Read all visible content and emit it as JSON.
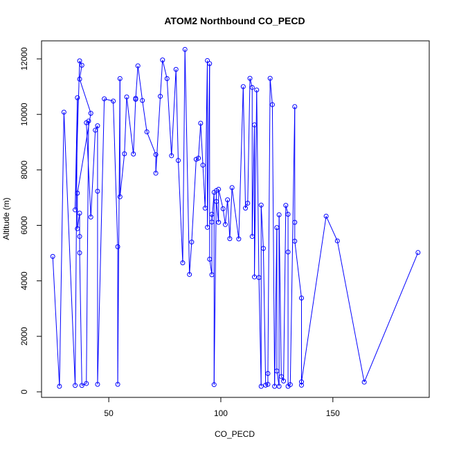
{
  "chart_data": {
    "type": "scatter",
    "title": "ATOM2 Northbound CO_PECD",
    "xlabel": "CO_PECD",
    "ylabel": "Altitude (m)",
    "xlim": [
      20,
      193
    ],
    "ylim": [
      -200,
      12650
    ],
    "xticks": [
      50,
      100,
      150
    ],
    "yticks": [
      0,
      2000,
      4000,
      6000,
      8000,
      10000,
      12000
    ],
    "grid": false,
    "legend": "none",
    "connected": true,
    "color": "#0000ff",
    "series": [
      {
        "points": [
          [
            25,
            4880
          ],
          [
            28,
            200
          ],
          [
            30,
            10080
          ],
          [
            35,
            230
          ],
          [
            36,
            10600
          ],
          [
            35,
            6560
          ],
          [
            37,
            11930
          ],
          [
            38,
            11770
          ],
          [
            37,
            11270
          ],
          [
            42,
            10040
          ],
          [
            36,
            7160
          ],
          [
            36,
            5880
          ],
          [
            37,
            6440
          ],
          [
            37,
            5600
          ],
          [
            37,
            5010
          ],
          [
            38,
            230
          ],
          [
            40,
            300
          ],
          [
            41,
            9760
          ],
          [
            40,
            9700
          ],
          [
            42,
            6300
          ],
          [
            44,
            9430
          ],
          [
            45,
            9590
          ],
          [
            45,
            7230
          ],
          [
            45,
            270
          ],
          [
            48,
            10560
          ],
          [
            52,
            10480
          ],
          [
            54,
            5230
          ],
          [
            54,
            270
          ],
          [
            55,
            11290
          ],
          [
            55,
            7030
          ],
          [
            57,
            8580
          ],
          [
            58,
            10630
          ],
          [
            61,
            8570
          ],
          [
            62,
            10580
          ],
          [
            62,
            10540
          ],
          [
            63,
            11750
          ],
          [
            65,
            10500
          ],
          [
            67,
            9370
          ],
          [
            71,
            8550
          ],
          [
            71,
            7880
          ],
          [
            73,
            10650
          ],
          [
            74,
            11960
          ],
          [
            76,
            11290
          ],
          [
            78,
            8510
          ],
          [
            80,
            11620
          ],
          [
            81,
            8340
          ],
          [
            83,
            4650
          ],
          [
            84,
            12340
          ],
          [
            86,
            4230
          ],
          [
            87,
            5400
          ],
          [
            89,
            8380
          ],
          [
            90,
            8420
          ],
          [
            91,
            9680
          ],
          [
            92,
            8170
          ],
          [
            93,
            6620
          ],
          [
            94,
            11940
          ],
          [
            94,
            5930
          ],
          [
            95,
            11830
          ],
          [
            95,
            4780
          ],
          [
            96,
            4220
          ],
          [
            96,
            6400
          ],
          [
            96,
            6120
          ],
          [
            97,
            7190
          ],
          [
            97,
            260
          ],
          [
            98,
            7250
          ],
          [
            98,
            6860
          ],
          [
            99,
            6110
          ],
          [
            99,
            7300
          ],
          [
            101,
            6600
          ],
          [
            102,
            6030
          ],
          [
            103,
            6920
          ],
          [
            104,
            5520
          ],
          [
            105,
            7360
          ],
          [
            108,
            5510
          ],
          [
            110,
            11000
          ],
          [
            111,
            6620
          ],
          [
            112,
            6800
          ],
          [
            113,
            11300
          ],
          [
            114,
            10970
          ],
          [
            114,
            5600
          ],
          [
            115,
            9620
          ],
          [
            115,
            4140
          ],
          [
            116,
            10880
          ],
          [
            117,
            4120
          ],
          [
            118,
            200
          ],
          [
            118,
            6730
          ],
          [
            119,
            5170
          ],
          [
            120,
            240
          ],
          [
            121,
            270
          ],
          [
            121,
            660
          ],
          [
            122,
            11300
          ],
          [
            123,
            10350
          ],
          [
            124,
            200
          ],
          [
            125,
            5920
          ],
          [
            125,
            750
          ],
          [
            126,
            200
          ],
          [
            126,
            6380
          ],
          [
            127,
            550
          ],
          [
            128,
            390
          ],
          [
            129,
            6720
          ],
          [
            130,
            6400
          ],
          [
            130,
            5040
          ],
          [
            130,
            200
          ],
          [
            131,
            260
          ],
          [
            133,
            10280
          ],
          [
            133,
            6110
          ],
          [
            133,
            5430
          ],
          [
            136,
            3380
          ],
          [
            136,
            240
          ],
          [
            136,
            360
          ],
          [
            147,
            6330
          ],
          [
            152,
            5440
          ],
          [
            164,
            350
          ],
          [
            188,
            5020
          ]
        ]
      }
    ]
  }
}
